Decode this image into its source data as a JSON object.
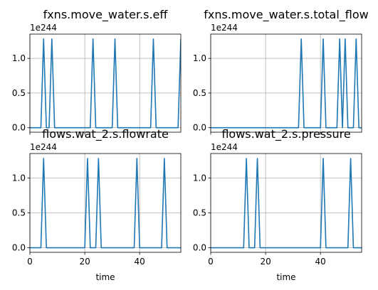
{
  "chart_data": [
    {
      "type": "line",
      "title": "fxns.move_water.s.eff",
      "xlabel": "",
      "ylabel": "",
      "xlim": [
        0,
        55
      ],
      "ylim": [
        -0.065,
        1.35
      ],
      "xticks": [
        0,
        20,
        40
      ],
      "show_xtick_labels": false,
      "yticks": [
        0.0,
        0.5,
        1.0
      ],
      "ytick_labels": [
        "0.0",
        "0.5",
        "1.0"
      ],
      "scale_label": "1e244",
      "grid": true,
      "series": [
        {
          "name": "fxns.move_water.s.eff",
          "color": "#1f77b4",
          "x": [
            0,
            3,
            4,
            5,
            6,
            7,
            8,
            9,
            10,
            21,
            22,
            23,
            24,
            29,
            30,
            31,
            32,
            43,
            44,
            45,
            46,
            53,
            54,
            55
          ],
          "y": [
            0,
            0,
            0,
            1.28,
            0,
            0,
            1.28,
            0,
            0,
            0,
            0,
            1.28,
            0,
            0,
            0,
            1.28,
            0,
            0,
            0,
            1.28,
            0,
            0,
            0,
            1.28
          ]
        }
      ]
    },
    {
      "type": "line",
      "title": "fxns.move_water.s.total_flow",
      "xlabel": "",
      "ylabel": "",
      "xlim": [
        0,
        55
      ],
      "ylim": [
        -0.065,
        1.35
      ],
      "xticks": [
        0,
        20,
        40
      ],
      "show_xtick_labels": false,
      "yticks": [
        0.0,
        0.5,
        1.0
      ],
      "ytick_labels": [
        "0.0",
        "0.5",
        "1.0"
      ],
      "scale_label": "1e244",
      "grid": true,
      "series": [
        {
          "name": "fxns.move_water.s.total_flow",
          "color": "#1f77b4",
          "x": [
            0,
            32,
            33,
            34,
            40,
            41,
            42,
            46,
            47,
            48,
            49,
            50,
            52,
            53,
            54,
            55
          ],
          "y": [
            0,
            0,
            1.28,
            0,
            0,
            1.28,
            0,
            0,
            1.28,
            0,
            1.28,
            0,
            0,
            1.28,
            0,
            0
          ]
        }
      ]
    },
    {
      "type": "line",
      "title": "flows.wat_2.s.flowrate",
      "xlabel": "time",
      "ylabel": "",
      "xlim": [
        0,
        55
      ],
      "ylim": [
        -0.065,
        1.35
      ],
      "xticks": [
        0,
        20,
        40
      ],
      "show_xtick_labels": true,
      "xtick_labels": [
        "0",
        "20",
        "40"
      ],
      "yticks": [
        0.0,
        0.5,
        1.0
      ],
      "ytick_labels": [
        "0.0",
        "0.5",
        "1.0"
      ],
      "scale_label": "1e244",
      "grid": true,
      "series": [
        {
          "name": "flows.wat_2.s.flowrate",
          "color": "#1f77b4",
          "x": [
            0,
            4,
            5,
            6,
            20,
            21,
            22,
            24,
            25,
            26,
            38,
            39,
            40,
            48,
            49,
            50,
            55
          ],
          "y": [
            0,
            0,
            1.28,
            0,
            0,
            1.28,
            0,
            0,
            1.28,
            0,
            0,
            1.28,
            0,
            0,
            1.28,
            0,
            0
          ]
        }
      ]
    },
    {
      "type": "line",
      "title": "flows.wat_2.s.pressure",
      "xlabel": "time",
      "ylabel": "",
      "xlim": [
        0,
        55
      ],
      "ylim": [
        -0.065,
        1.35
      ],
      "xticks": [
        0,
        20,
        40
      ],
      "show_xtick_labels": true,
      "xtick_labels": [
        "0",
        "20",
        "40"
      ],
      "yticks": [
        0.0,
        0.5,
        1.0
      ],
      "ytick_labels": [
        "0.0",
        "0.5",
        "1.0"
      ],
      "scale_label": "1e244",
      "grid": true,
      "series": [
        {
          "name": "flows.wat_2.s.pressure",
          "color": "#1f77b4",
          "x": [
            0,
            12,
            13,
            14,
            16,
            17,
            18,
            40,
            41,
            42,
            50,
            51,
            52,
            55
          ],
          "y": [
            0,
            0,
            1.28,
            0,
            0,
            1.28,
            0,
            0,
            1.28,
            0,
            0,
            1.28,
            0,
            0
          ]
        }
      ]
    }
  ]
}
